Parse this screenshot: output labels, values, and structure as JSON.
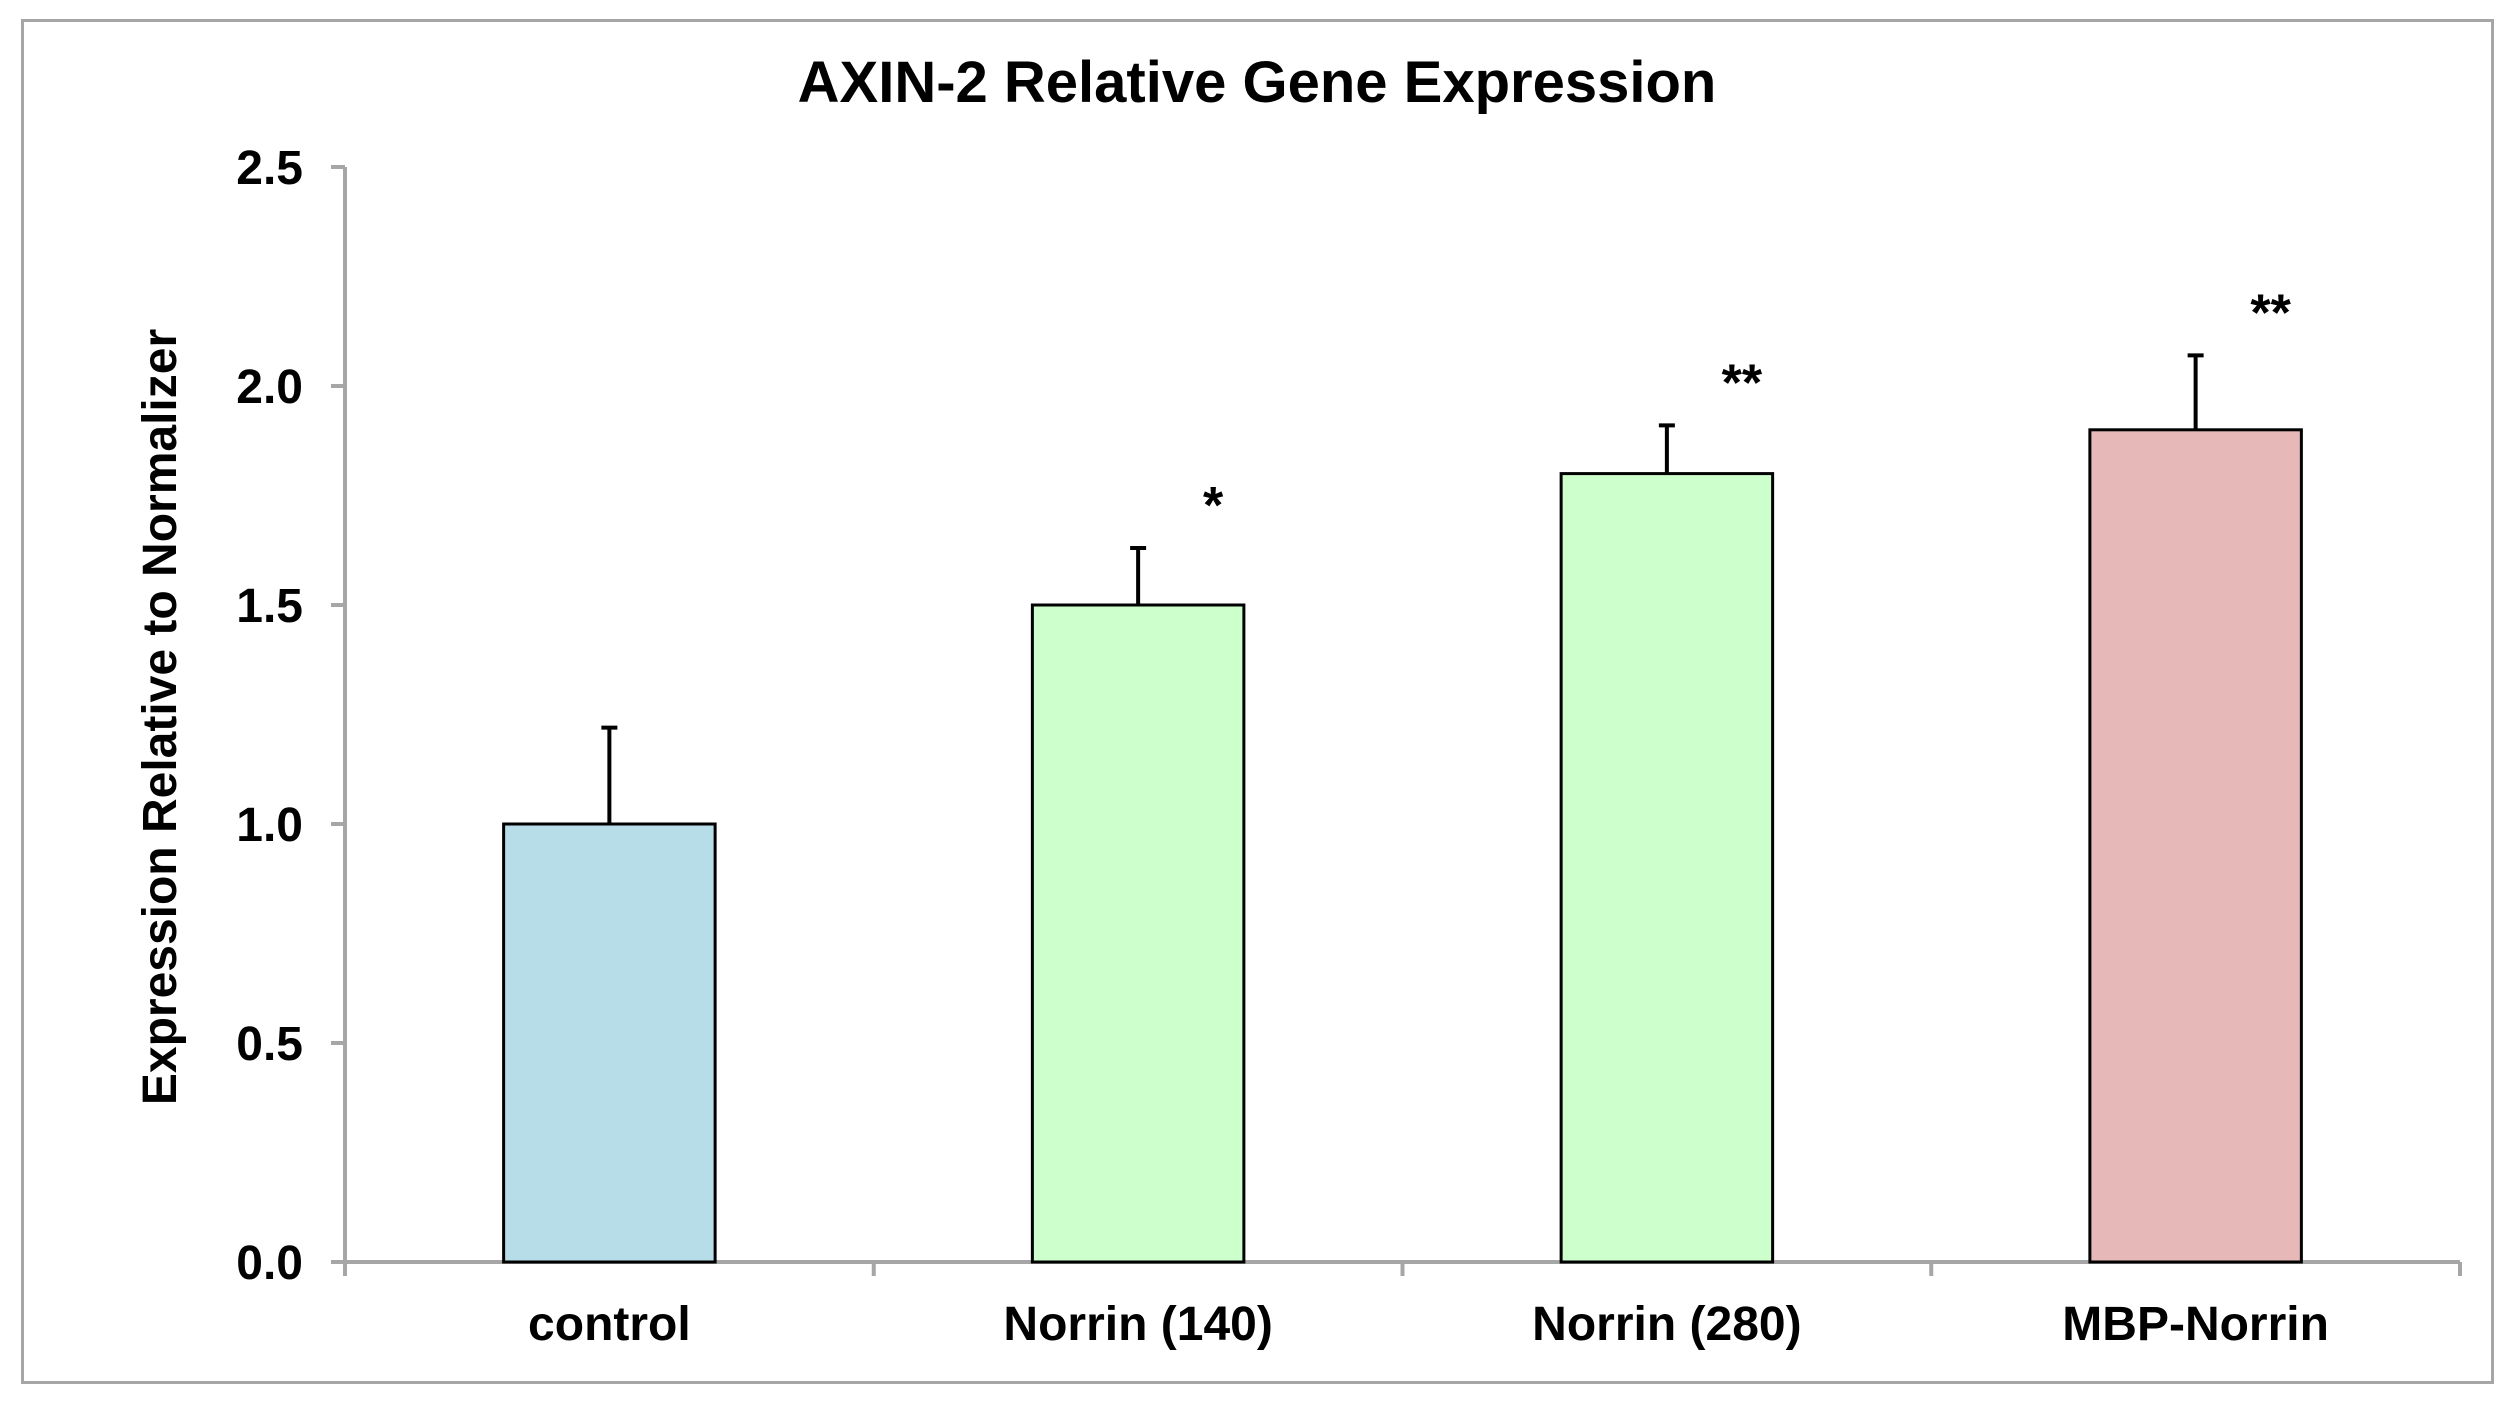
{
  "chart_data": {
    "type": "bar",
    "title": "AXIN-2 Relative Gene Expression",
    "xlabel": "",
    "ylabel": "Expression Relative to Normalizer",
    "categories": [
      "control",
      "Norrin (140)",
      "Norrin (280)",
      "MBP-Norrin"
    ],
    "values": [
      1.0,
      1.5,
      1.8,
      1.9
    ],
    "error_bars": [
      0.22,
      0.13,
      0.11,
      0.17
    ],
    "significance": [
      "",
      "*",
      "**",
      "**"
    ],
    "bar_colors": [
      "#b7dde8",
      "#ccffcc",
      "#ccffcc",
      "#e6b9b8"
    ],
    "ylim": [
      0,
      2.5
    ],
    "y_ticks": [
      "0.0",
      "0.5",
      "1.0",
      "1.5",
      "2.0",
      "2.5"
    ],
    "grid": false,
    "legend": "none"
  },
  "colors": {
    "axis": "#a6a6a6",
    "bar_outline": "#000000",
    "frame": "#a6a6a6"
  }
}
